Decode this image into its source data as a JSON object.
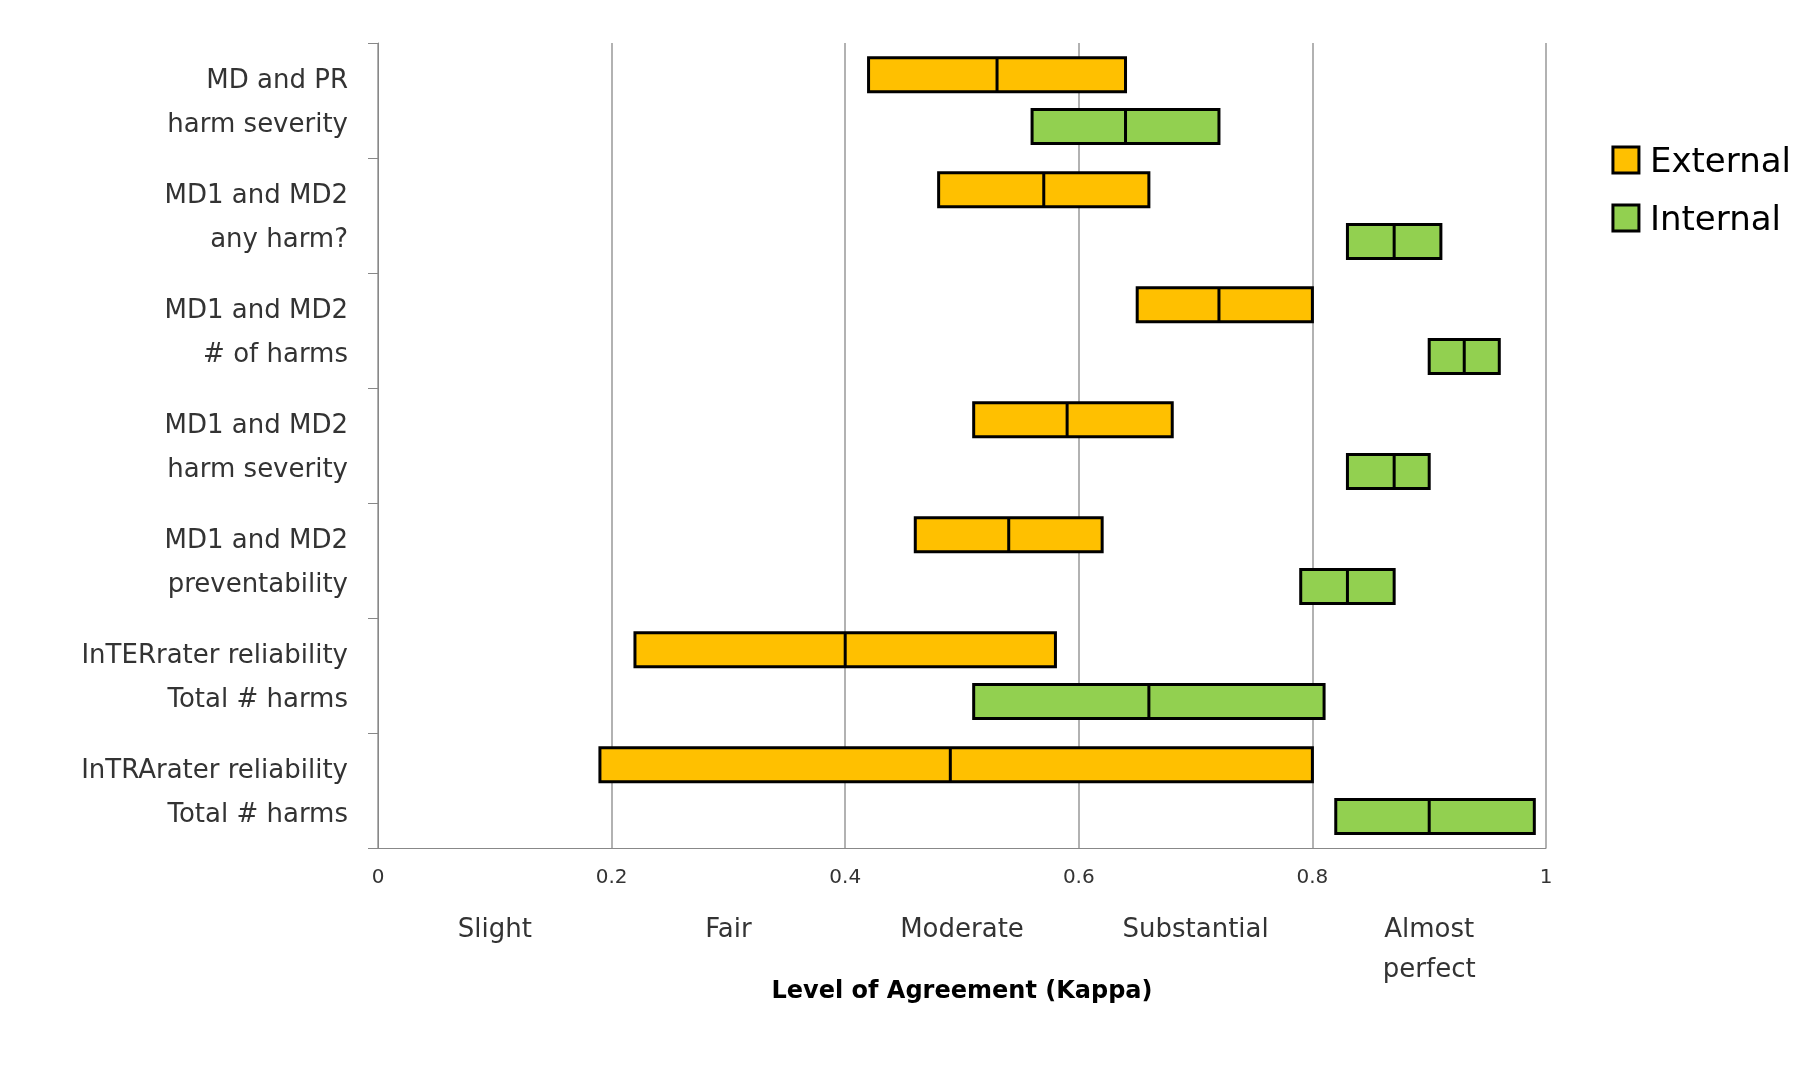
{
  "chart_data": {
    "type": "box",
    "orientation": "horizontal",
    "xlabel": "Level of Agreement (Kappa)",
    "categories": [
      "MD and PR\nharm severity",
      "MD1 and MD2\nany harm?",
      "MD1 and MD2\n# of harms",
      "MD1 and MD2\nharm severity",
      "MD1 and MD2\npreventability",
      "InTERrater reliability\nTotal # harms",
      "InTRArater reliability\nTotal # harms"
    ],
    "series": [
      {
        "name": "External",
        "color": "#ffc000",
        "boxes": [
          {
            "low": 0.42,
            "q1": 0.42,
            "median": 0.53,
            "q3": 0.64,
            "high": 0.64
          },
          {
            "low": 0.48,
            "q1": 0.48,
            "median": 0.57,
            "q3": 0.66,
            "high": 0.66
          },
          {
            "low": 0.65,
            "q1": 0.65,
            "median": 0.72,
            "q3": 0.8,
            "high": 0.8
          },
          {
            "low": 0.51,
            "q1": 0.51,
            "median": 0.59,
            "q3": 0.68,
            "high": 0.68
          },
          {
            "low": 0.46,
            "q1": 0.46,
            "median": 0.54,
            "q3": 0.62,
            "high": 0.62
          },
          {
            "low": 0.22,
            "q1": 0.22,
            "median": 0.4,
            "q3": 0.58,
            "high": 0.58
          },
          {
            "low": 0.19,
            "q1": 0.19,
            "median": 0.49,
            "q3": 0.8,
            "high": 0.8
          }
        ]
      },
      {
        "name": "Internal",
        "color": "#92d050",
        "boxes": [
          {
            "low": 0.56,
            "q1": 0.56,
            "median": 0.64,
            "q3": 0.72,
            "high": 0.72
          },
          {
            "low": 0.83,
            "q1": 0.83,
            "median": 0.87,
            "q3": 0.91,
            "high": 0.91
          },
          {
            "low": 0.9,
            "q1": 0.9,
            "median": 0.93,
            "q3": 0.96,
            "high": 0.96
          },
          {
            "low": 0.83,
            "q1": 0.83,
            "median": 0.87,
            "q3": 0.9,
            "high": 0.9
          },
          {
            "low": 0.79,
            "q1": 0.79,
            "median": 0.83,
            "q3": 0.87,
            "high": 0.87
          },
          {
            "low": 0.51,
            "q1": 0.51,
            "median": 0.66,
            "q3": 0.81,
            "high": 0.81
          },
          {
            "low": 0.82,
            "q1": 0.82,
            "median": 0.9,
            "q3": 0.99,
            "high": 0.99
          }
        ]
      }
    ],
    "xlim": [
      0,
      1
    ],
    "xticks": [
      0,
      0.2,
      0.4,
      0.6,
      0.8,
      1
    ],
    "grid": "x",
    "legend": "right",
    "annotations": [
      "Slight",
      "Fair",
      "Moderate",
      "Substantial",
      "Almost\nperfect"
    ]
  }
}
